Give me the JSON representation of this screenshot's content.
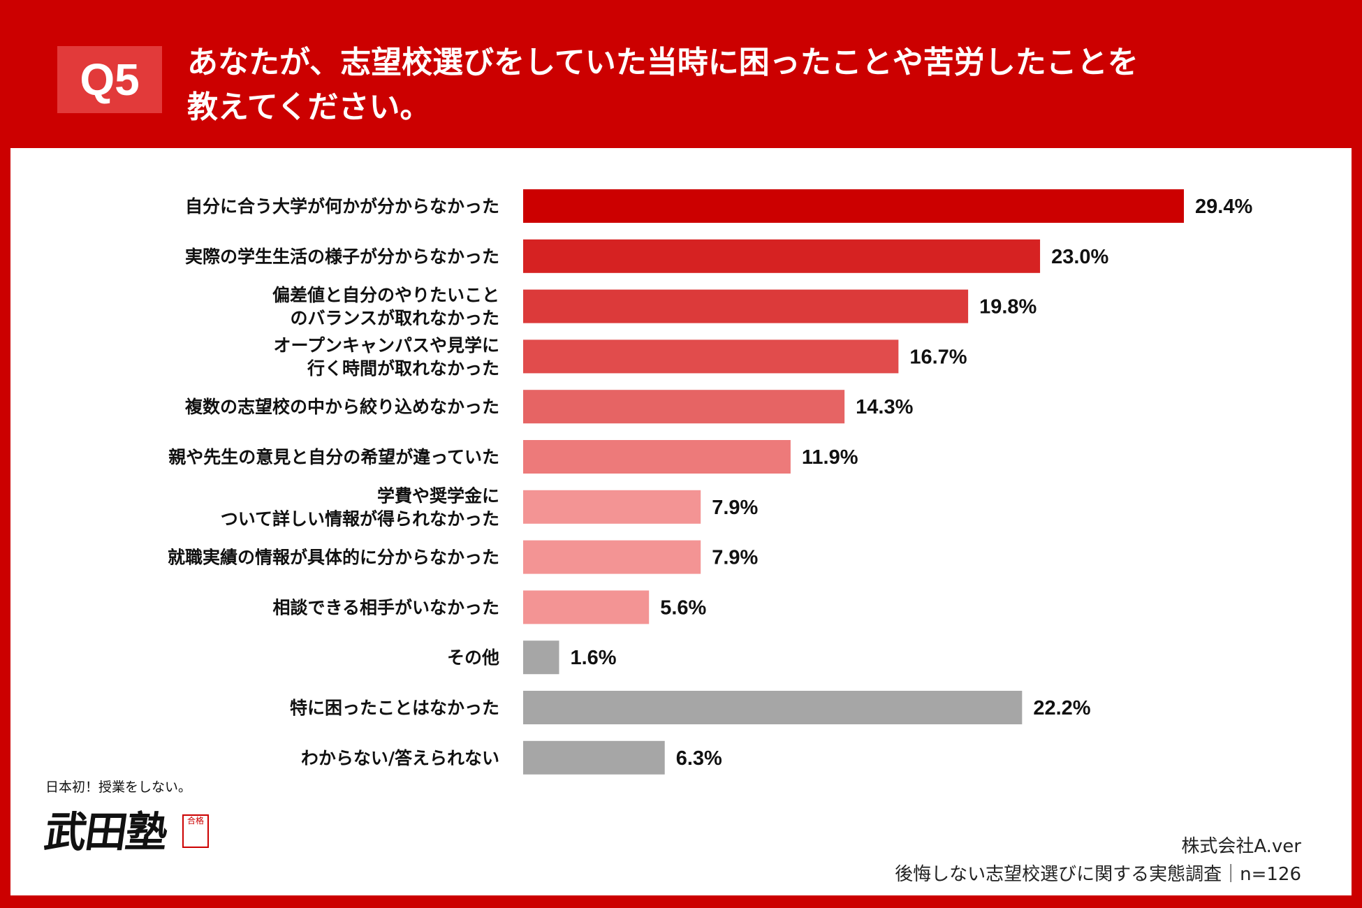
{
  "header": {
    "badge": "Q5",
    "question_line1": "あなたが、志望校選びをしていた当時に困ったことや苦労したことを",
    "question_line2": "教えてください。"
  },
  "logo": {
    "tagline": "日本初！授業をしない。",
    "name": "武田塾",
    "seal": "合格"
  },
  "credit": {
    "company": "株式会社A.ver",
    "survey": "後悔しない志望校選びに関する実態調査｜n=126"
  },
  "colors": {
    "header_bg": "#cc0000",
    "panel_bg": "#ffffff",
    "badge_bg": "#e23a3a",
    "gray_bar": "#a6a6a6"
  },
  "chart_data": {
    "type": "bar",
    "orientation": "horizontal",
    "title": "",
    "xlabel": "",
    "ylabel": "",
    "xlim": [
      0,
      29.4
    ],
    "grid": false,
    "legend": "none",
    "value_suffix": "%",
    "categories": [
      [
        "自分に合う大学が何かが分からなかった"
      ],
      [
        "実際の学生生活の様子が分からなかった"
      ],
      [
        "偏差値と自分のやりたいこと",
        "のバランスが取れなかった"
      ],
      [
        "オープンキャンパスや見学に",
        "行く時間が取れなかった"
      ],
      [
        "複数の志望校の中から絞り込めなかった"
      ],
      [
        "親や先生の意見と自分の希望が違っていた"
      ],
      [
        "学費や奨学金に",
        "ついて詳しい情報が得られなかった"
      ],
      [
        "就職実績の情報が具体的に分からなかった"
      ],
      [
        "相談できる相手がいなかった"
      ],
      [
        "その他"
      ],
      [
        "特に困ったことはなかった"
      ],
      [
        "わからない/答えられない"
      ]
    ],
    "values": [
      29.4,
      23.0,
      19.8,
      16.7,
      14.3,
      11.9,
      7.9,
      7.9,
      5.6,
      1.6,
      22.2,
      6.3
    ],
    "value_labels": [
      "29.4%",
      "23.0%",
      "19.8%",
      "16.7%",
      "14.3%",
      "11.9%",
      "7.9%",
      "7.9%",
      "5.6%",
      "1.6%",
      "22.2%",
      "6.3%"
    ],
    "bar_colors": [
      "#cc0000",
      "#d62222",
      "#dc3a3a",
      "#e14c4c",
      "#e66464",
      "#ed7a7a",
      "#f39494",
      "#f39494",
      "#f39494",
      "#a6a6a6",
      "#a6a6a6",
      "#a6a6a6"
    ]
  }
}
